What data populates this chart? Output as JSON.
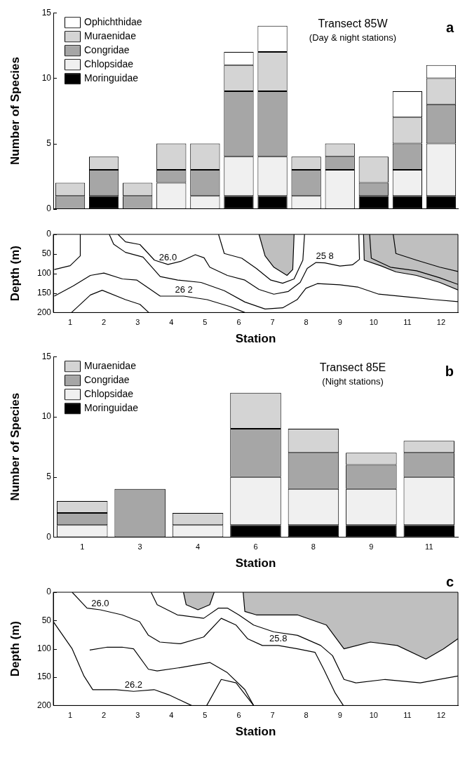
{
  "chart_data": [
    {
      "type": "bar",
      "title": "Transect 85W",
      "subtitle": "(Day & night stations)",
      "annotations": [
        "a"
      ],
      "ylabel": "Number of Species",
      "x": [
        1,
        2,
        3,
        4,
        5,
        6,
        7,
        8,
        9,
        10,
        11,
        12
      ],
      "xlim": [
        0.5,
        12.5
      ],
      "xticks": [
        1,
        2,
        3,
        4,
        5,
        6,
        7,
        8,
        9,
        10,
        11,
        12
      ],
      "stacked": true,
      "ylim": [
        0,
        15
      ],
      "yticks": [
        0,
        5,
        10,
        15
      ],
      "tick_labels": "y",
      "legend": "top left",
      "grid": false,
      "series": [
        {
          "name": "Moringuidae",
          "color": "#000000",
          "values": [
            0,
            1,
            0,
            0,
            0,
            1,
            1,
            0,
            0,
            1,
            1,
            1
          ]
        },
        {
          "name": "Chlopsidae",
          "color": "#f0f0f0",
          "values": [
            0,
            0,
            0,
            2,
            1,
            3,
            3,
            1,
            3,
            0,
            2,
            4
          ]
        },
        {
          "name": "Congridae",
          "color": "#a6a6a6",
          "values": [
            1,
            2,
            1,
            1,
            2,
            5,
            5,
            2,
            1,
            1,
            2,
            3
          ]
        },
        {
          "name": "Muraenidae",
          "color": "#d4d4d4",
          "values": [
            1,
            1,
            1,
            2,
            2,
            2,
            3,
            1,
            1,
            2,
            2,
            2
          ]
        },
        {
          "name": "Ophichthidae",
          "color": "#ffffff",
          "values": [
            0,
            0,
            0,
            0,
            0,
            1,
            2,
            0,
            0,
            0,
            2,
            1
          ]
        }
      ]
    },
    {
      "type": "line",
      "xlabel": "Station",
      "ylabel": "Depth (m)",
      "xlim": [
        0.5,
        12.5
      ],
      "xticks": [
        1,
        2,
        3,
        4,
        5,
        6,
        7,
        8,
        9,
        10,
        11,
        12
      ],
      "ylim": [
        200,
        0
      ],
      "yticks": [
        0,
        50,
        100,
        150,
        200
      ],
      "grid": false,
      "marker": "none",
      "line_style": "solid",
      "annotations": [
        {
          "text": "26.0",
          "x": 3.9,
          "y": 77
        },
        {
          "text": "25 8",
          "x": 8.55,
          "y": 73
        },
        {
          "text": "26 2",
          "x": 4.37,
          "y": 158
        }
      ],
      "series": [
        {
          "type": "area",
          "color": "#bfbfbf",
          "x": [
            6.6,
            6.78,
            7.04,
            7.43,
            7.6,
            7.64
          ],
          "values": [
            0,
            55,
            84,
            105,
            90,
            0
          ]
        },
        {
          "type": "area",
          "color": "#bfbfbf",
          "x": [
            9.7,
            9.72,
            10.23,
            10.66,
            11.27,
            11.96,
            12.5
          ],
          "values": [
            0,
            66,
            81,
            96,
            105,
            123,
            142
          ]
        },
        {
          "color": "#000000",
          "x": [
            0.53,
            1.0,
            1.3,
            1.3
          ],
          "values": [
            90,
            80,
            55,
            0
          ]
        },
        {
          "color": "#000000",
          "x": [
            0.53,
            1.09,
            1.6,
            2.0,
            2.55,
            2.98,
            3.33,
            3.67,
            4.37,
            5.06,
            5.75,
            6.18
          ],
          "values": [
            158,
            132,
            105,
            99,
            114,
            117,
            138,
            158,
            158,
            167,
            185,
            200
          ]
        },
        {
          "color": "#000000",
          "x": [
            1.04,
            1.6,
            1.95,
            2.64,
            3.07,
            3.33
          ],
          "values": [
            200,
            155,
            143,
            167,
            179,
            200
          ]
        },
        {
          "color": "#000000",
          "x": [
            2.42,
            2.64,
            3.07,
            3.5,
            3.9,
            4.28,
            4.71,
            4.97,
            5.14,
            5.66,
            6.18,
            6.6,
            7.04,
            7.47,
            7.82,
            8.03,
            8.29,
            8.55,
            9.0,
            9.37,
            9.58,
            9.56
          ],
          "values": [
            0,
            19,
            26,
            66,
            77,
            69,
            52,
            60,
            84,
            105,
            117,
            141,
            153,
            146,
            123,
            87,
            72,
            73,
            81,
            78,
            64,
            0
          ]
        },
        {
          "color": "#000000",
          "x": [
            2.16,
            2.29,
            2.64,
            3.16,
            3.67,
            4.19,
            4.88,
            5.57,
            6.18,
            6.78,
            7.3,
            7.73,
            7.99,
            8.33,
            9.0,
            9.54,
            10.15,
            11.1,
            11.8,
            12.5
          ],
          "values": [
            0,
            25,
            46,
            58,
            108,
            117,
            123,
            144,
            173,
            191,
            188,
            167,
            138,
            126,
            129,
            135,
            153,
            161,
            167,
            172
          ]
        },
        {
          "color": "#000000",
          "x": [
            5.4,
            5.57,
            6.09,
            6.52,
            6.95,
            7.3,
            7.64,
            7.9,
            7.95
          ],
          "values": [
            0,
            49,
            61,
            87,
            117,
            125,
            114,
            66,
            0
          ]
        },
        {
          "color": "#000000",
          "x": [
            10.58,
            10.66,
            11.27,
            11.96,
            12.5
          ],
          "values": [
            0,
            49,
            66,
            84,
            95
          ]
        },
        {
          "color": "#000000",
          "x": [
            9.88,
            9.93,
            10.5,
            11.27,
            11.96,
            12.5
          ],
          "values": [
            0,
            61,
            84,
            93,
            111,
            128
          ]
        }
      ]
    },
    {
      "type": "bar",
      "title": "Transect 85E",
      "subtitle": "(Night stations)",
      "annotations": [
        "b"
      ],
      "xlabel": "Station",
      "ylabel": "Number of Species",
      "categories": [
        "1",
        "3",
        "4",
        "6",
        "8",
        "9",
        "11"
      ],
      "stacked": true,
      "ylim": [
        0,
        15
      ],
      "yticks": [
        0,
        5,
        10,
        15
      ],
      "legend": "top left",
      "grid": false,
      "series": [
        {
          "name": "Moringuidae",
          "color": "#000000",
          "values": [
            0,
            0,
            0,
            1,
            1,
            1,
            1
          ]
        },
        {
          "name": "Chlopsidae",
          "color": "#f0f0f0",
          "values": [
            1,
            0,
            1,
            4,
            3,
            3,
            4
          ]
        },
        {
          "name": "Congridae",
          "color": "#a6a6a6",
          "values": [
            1,
            4,
            0,
            4,
            3,
            2,
            2
          ]
        },
        {
          "name": "Muraenidae",
          "color": "#d4d4d4",
          "values": [
            1,
            0,
            1,
            3,
            2,
            1,
            1
          ]
        }
      ]
    },
    {
      "type": "line",
      "xlabel": "Station",
      "ylabel": "Depth (m)",
      "xlim": [
        0.5,
        12.5
      ],
      "xticks": [
        1,
        2,
        3,
        4,
        5,
        6,
        7,
        8,
        9,
        10,
        11,
        12
      ],
      "ylim": [
        200,
        0
      ],
      "yticks": [
        0,
        50,
        100,
        150,
        200
      ],
      "grid": false,
      "marker": "none",
      "line_style": "solid",
      "annotations": [
        "c",
        {
          "text": "26.0",
          "x": 1.89,
          "y": 31
        },
        {
          "text": "25.8",
          "x": 7.17,
          "y": 94
        },
        {
          "text": "26.2",
          "x": 2.88,
          "y": 175
        }
      ],
      "series": [
        {
          "type": "area",
          "color": "#bfbfbf",
          "x": [
            6.13,
            6.18,
            6.52,
            7.74,
            8.6,
            9.12,
            9.9,
            10.7,
            11.55,
            12.07,
            12.5
          ],
          "values": [
            0,
            34,
            40,
            40,
            58,
            100,
            88,
            94,
            118,
            100,
            82
          ]
        },
        {
          "type": "area",
          "color": "#bfbfbf",
          "x": [
            4.36,
            4.44,
            4.79,
            5.14,
            5.27
          ],
          "values": [
            0,
            22,
            31,
            22,
            0
          ]
        },
        {
          "color": "#000000",
          "x": [
            0.5,
            1.06,
            1.41,
            1.67,
            2.36,
            2.88,
            3.49,
            3.92,
            4.6
          ],
          "values": [
            52,
            100,
            148,
            172,
            172,
            175,
            172,
            181,
            200
          ]
        },
        {
          "color": "#000000",
          "x": [
            1.06,
            1.5,
            1.89,
            2.54,
            3.06,
            3.32,
            3.66,
            4.27,
            4.96,
            5.48,
            5.92,
            6.26,
            6.7,
            7.17,
            7.74,
            8.26,
            8.52,
            8.86,
            9.1
          ],
          "values": [
            0,
            28,
            31,
            40,
            52,
            76,
            88,
            91,
            79,
            46,
            58,
            82,
            94,
            94,
            100,
            106,
            136,
            178,
            200
          ]
        },
        {
          "color": "#000000",
          "x": [
            1.58,
            2.1,
            2.54,
            2.88,
            3.32,
            3.58,
            4.27,
            5.14,
            5.66,
            6.18,
            6.44
          ],
          "values": [
            102,
            97,
            97,
            100,
            136,
            139,
            133,
            124,
            142,
            172,
            200
          ]
        },
        {
          "color": "#000000",
          "x": [
            5.05,
            5.48,
            5.92,
            6.44
          ],
          "values": [
            200,
            154,
            160,
            200
          ]
        },
        {
          "color": "#000000",
          "x": [
            3.4,
            3.58,
            4.18,
            4.96,
            5.4,
            5.66,
            6.0,
            6.44,
            7.04,
            7.74,
            8.43,
            8.78,
            9.12,
            9.47,
            10.34,
            11.38,
            12.5
          ],
          "values": [
            0,
            22,
            40,
            46,
            28,
            28,
            40,
            58,
            70,
            76,
            94,
            112,
            154,
            160,
            154,
            160,
            148
          ]
        }
      ]
    }
  ]
}
